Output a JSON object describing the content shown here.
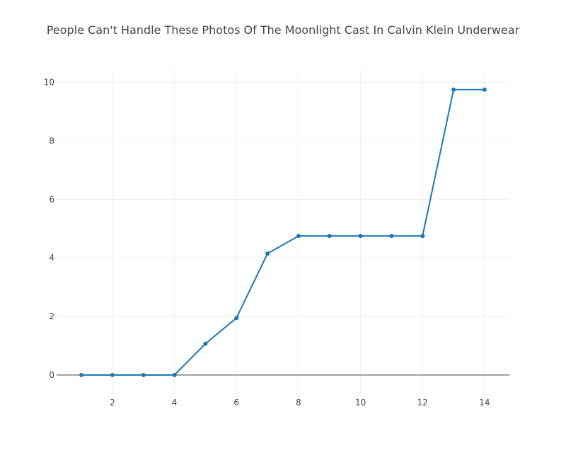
{
  "chart_data": {
    "type": "line",
    "title": "People Can't Handle These Photos Of The Moonlight Cast In Calvin Klein Underwear",
    "xlabel": "",
    "ylabel": "",
    "x": [
      1,
      2,
      3,
      4,
      5,
      6,
      7,
      8,
      9,
      10,
      11,
      12,
      13,
      14
    ],
    "series": [
      {
        "values": [
          0,
          0,
          0,
          0,
          1.07,
          1.95,
          4.15,
          4.75,
          4.75,
          4.75,
          4.75,
          4.75,
          9.75,
          9.75
        ],
        "color": "#1f77b4"
      }
    ],
    "xlim": [
      0.2,
      14.8
    ],
    "ylim": [
      -0.7,
      10.4
    ],
    "xticks": [
      2,
      4,
      6,
      8,
      10,
      12,
      14
    ],
    "yticks": [
      0,
      2,
      4,
      6,
      8,
      10
    ],
    "grid": true,
    "legend": "none"
  }
}
